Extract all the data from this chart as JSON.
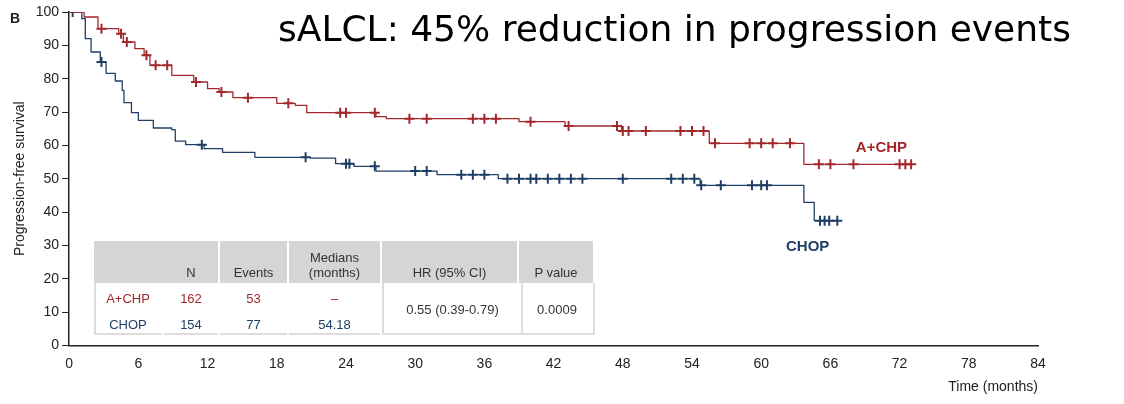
{
  "chart_data": {
    "type": "step",
    "title": "sALCL: 45% reduction in progression events",
    "xlabel": "Time (months)",
    "ylabel": "Progression-free survival",
    "xlim": [
      0,
      84
    ],
    "xticks": [
      0,
      6,
      12,
      18,
      24,
      30,
      36,
      42,
      48,
      54,
      60,
      66,
      72,
      78,
      84
    ],
    "ylim": [
      0,
      100
    ],
    "yticks": [
      0,
      10,
      20,
      30,
      40,
      50,
      60,
      70,
      80,
      90,
      100
    ],
    "legend": false,
    "grid": false,
    "annotations": [
      "B",
      "N",
      "Events",
      "Medians (months)",
      "HR (95% CI)",
      "P value",
      "A+CHP",
      "162",
      "53",
      "–",
      "CHOP",
      "154",
      "77",
      "54.18",
      "0.55 (0.39-0.79)",
      "0.0009"
    ],
    "series": [
      {
        "type": "step",
        "name": "A+CHP",
        "color": "#a3282c",
        "marker": "cross",
        "x": [
          0,
          1.3,
          2.5,
          2.8,
          4.3,
          4.5,
          4.7,
          5,
          5.7,
          6.5,
          6.7,
          7,
          7.5,
          8.5,
          8.9,
          10.8,
          11,
          12,
          13,
          13.2,
          14.2,
          15.5,
          18,
          19,
          19.6,
          20.6,
          23.5,
          24,
          26.5,
          26.6,
          27.5,
          29.5,
          31,
          35,
          36,
          37,
          39,
          40,
          43,
          43.3,
          47.5,
          47.9,
          48,
          48.5,
          50,
          53,
          54,
          55,
          55.5,
          56,
          59,
          60,
          61,
          62.5,
          63.7,
          65,
          66,
          68,
          72,
          72.5,
          73
        ],
        "values": [
          100,
          98.5,
          95,
          95,
          93.5,
          93.5,
          91,
          91,
          89,
          87,
          87,
          84,
          84,
          84,
          81,
          79,
          79,
          77,
          76,
          76,
          74.3,
          74.3,
          72.6,
          72.6,
          72,
          69.8,
          69.8,
          69.8,
          69.8,
          68.6,
          68,
          68,
          68,
          68,
          68,
          68,
          67.1,
          67.1,
          65.8,
          65.8,
          65.8,
          64.3,
          64.3,
          64.3,
          64.3,
          64.3,
          64.3,
          64.3,
          60.6,
          60.6,
          60.6,
          60.6,
          60.6,
          60.6,
          54.3,
          54.3,
          54.3,
          54.3,
          54.3,
          54.3,
          54.3
        ]
      },
      {
        "type": "step",
        "name": "CHOP",
        "color": "#1f3f66",
        "marker": "cross",
        "x": [
          0,
          0.3,
          1.1,
          1.4,
          1.9,
          2.7,
          2.8,
          3.2,
          4,
          4.6,
          4.75,
          5.4,
          6,
          7.3,
          8.9,
          9.2,
          10.1,
          11.5,
          11.7,
          13.3,
          16.1,
          20.5,
          20.9,
          23.1,
          24,
          24.3,
          24.7,
          26.5,
          26.6,
          30,
          31,
          31.9,
          34,
          35,
          36,
          37.2,
          38,
          39,
          40,
          40.5,
          41.5,
          42.5,
          43.5,
          44.5,
          48,
          52.2,
          53.2,
          54.2,
          54.7,
          54.8,
          56.5,
          59.2,
          60,
          60.5,
          63.7,
          64.6,
          65.1,
          65.5,
          65.9,
          66.6
        ],
        "values": [
          100,
          100,
          98,
          92,
          88,
          85,
          85,
          81.6,
          79.3,
          76.5,
          72.8,
          69.8,
          67.5,
          65.2,
          64.7,
          61.3,
          60.2,
          60.2,
          59,
          57.9,
          56.4,
          56.4,
          56.2,
          54.5,
          54.5,
          54.5,
          53.7,
          53.7,
          52.3,
          52.3,
          52.3,
          51.2,
          51.2,
          51.2,
          51.2,
          50,
          50,
          50,
          50,
          50,
          50,
          50,
          50,
          50,
          50,
          50,
          50,
          50,
          48,
          48,
          48,
          48,
          48,
          48,
          42.9,
          37.4,
          37.4,
          37.4,
          37.4,
          37.4
        ]
      }
    ]
  }
}
